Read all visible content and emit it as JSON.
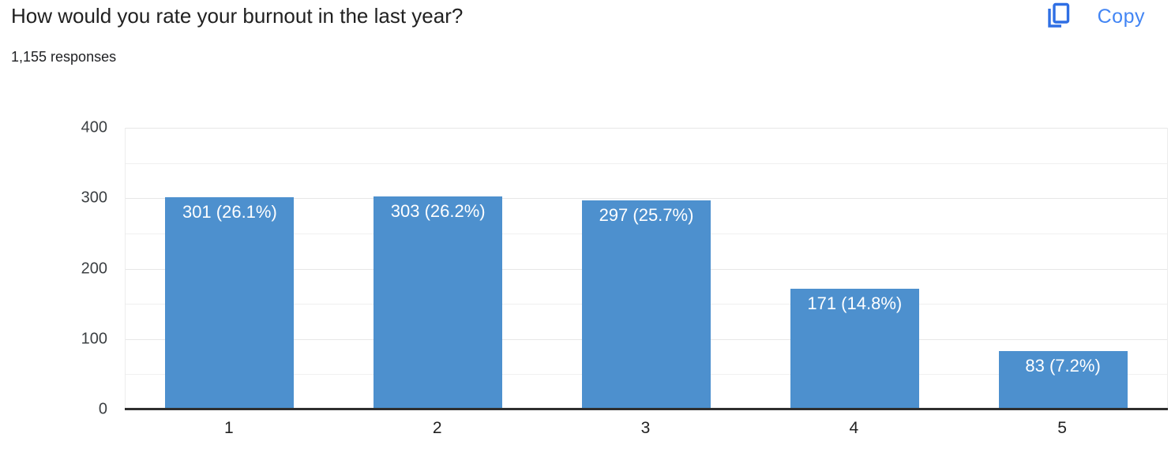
{
  "header": {
    "title": "How would you rate your burnout in the last year?",
    "responses": "1,155 responses",
    "copy_label": "Copy"
  },
  "colors": {
    "bar": "#4D90CE",
    "accent_blue": "#4285F4",
    "grid_major": "#e7e7e7",
    "grid_minor": "#f0f0f0",
    "axis_line": "#2f2f2f",
    "title_text": "#212121",
    "axis_text": "#3c4043"
  },
  "chart_data": {
    "type": "bar",
    "title": "How would you rate your burnout in the last year?",
    "xlabel": "",
    "ylabel": "",
    "categories": [
      "1",
      "2",
      "3",
      "4",
      "5"
    ],
    "values": [
      301,
      303,
      297,
      171,
      83
    ],
    "bar_labels": [
      "301 (26.1%)",
      "303 (26.2%)",
      "297 (25.7%)",
      "171 (14.8%)",
      "83 (7.2%)"
    ],
    "percentages": [
      26.1,
      26.2,
      25.7,
      14.8,
      7.2
    ],
    "total_responses": 1155,
    "ylim": [
      0,
      400
    ],
    "ytick_label_step": 100,
    "ytick_grid_step": 50,
    "grid": true,
    "legend_position": "none"
  }
}
